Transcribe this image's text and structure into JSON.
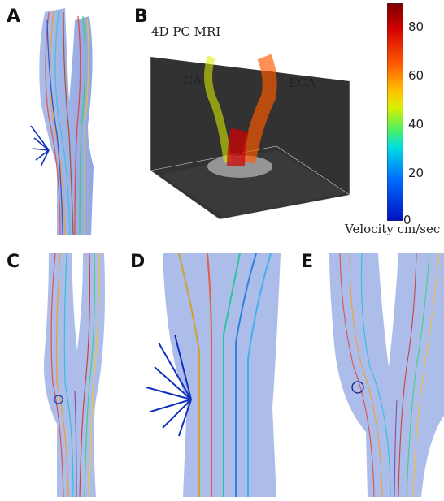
{
  "panels": {
    "a": {
      "letter": "A"
    },
    "b": {
      "letter": "B",
      "title": "4D PC MRI",
      "ica": "ICA",
      "eca": "ECA"
    },
    "c": {
      "letter": "C"
    },
    "d": {
      "letter": "D"
    },
    "e": {
      "letter": "E"
    }
  },
  "colorbar": {
    "ticks": [
      "80",
      "60",
      "40",
      "20",
      "0"
    ],
    "label": "Velocity cm/sec",
    "min": 0,
    "max": 88,
    "colors": [
      "#7a0000",
      "#d40000",
      "#ff5a00",
      "#ffc000",
      "#d8f000",
      "#50f060",
      "#00e0e0",
      "#0070ff",
      "#0010c0"
    ]
  }
}
